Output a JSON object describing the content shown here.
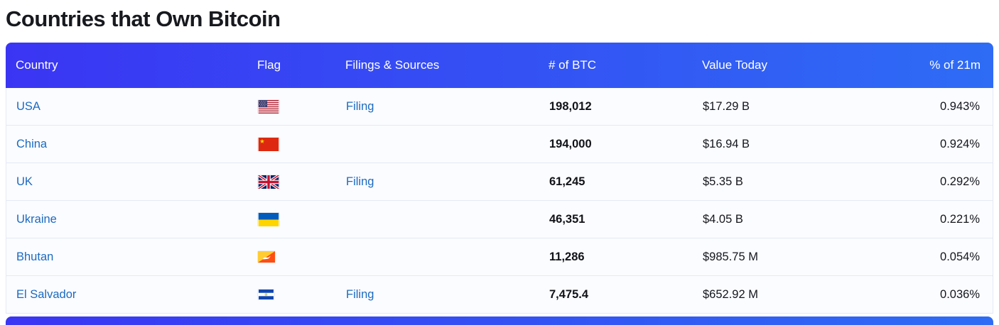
{
  "page": {
    "title": "Countries that Own Bitcoin"
  },
  "table": {
    "columns": [
      "Country",
      "Flag",
      "Filings & Sources",
      "# of BTC",
      "Value Today",
      "% of 21m"
    ],
    "rows": [
      {
        "country": "USA",
        "flag": "usa",
        "filing": "Filing",
        "btc": "198,012",
        "value": "$17.29 B",
        "pct": "0.943%"
      },
      {
        "country": "China",
        "flag": "china",
        "filing": "",
        "btc": "194,000",
        "value": "$16.94 B",
        "pct": "0.924%"
      },
      {
        "country": "UK",
        "flag": "uk",
        "filing": "Filing",
        "btc": "61,245",
        "value": "$5.35 B",
        "pct": "0.292%"
      },
      {
        "country": "Ukraine",
        "flag": "ukraine",
        "filing": "",
        "btc": "46,351",
        "value": "$4.05 B",
        "pct": "0.221%"
      },
      {
        "country": "Bhutan",
        "flag": "bhutan",
        "filing": "",
        "btc": "11,286",
        "value": "$985.75 M",
        "pct": "0.054%"
      },
      {
        "country": "El Salvador",
        "flag": "el-salvador",
        "filing": "Filing",
        "btc": "7,475.4",
        "value": "$652.92 M",
        "pct": "0.036%"
      }
    ]
  },
  "colors": {
    "header_gradient_start": "#3a35f3",
    "header_gradient_end": "#2e6cf5",
    "link_blue": "#1b6ac1",
    "row_background": "#fbfcff",
    "row_border": "#e5e9f4",
    "title_color": "#17191f",
    "text_dark": "#14161c"
  }
}
